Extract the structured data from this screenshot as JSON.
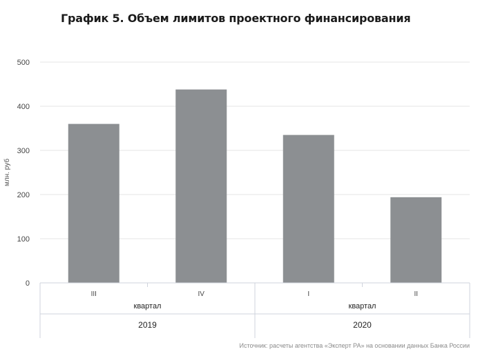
{
  "title": "График 5. Объем лимитов проектного финансирования",
  "source": "Источник: расчеты агентства «Эксперт РА» на основании данных Банка России",
  "colors": {
    "bar": "#8c8f92",
    "grid": "#e6e6e6",
    "axis": "#cfd3dc",
    "text": "#333333"
  },
  "chart_data": {
    "type": "bar",
    "title": "График 5. Объем лимитов проектного финансирования",
    "ylabel": "млн. руб",
    "ylim": [
      0,
      500
    ],
    "yticks": [
      "0",
      "100",
      "200",
      "300",
      "400",
      "500"
    ],
    "grid": true,
    "categories": [
      "III",
      "IV",
      "I",
      "II"
    ],
    "values": [
      360,
      438,
      335,
      194
    ],
    "groups": [
      {
        "sublabel": "квартал",
        "label": "2019",
        "categories": [
          "III",
          "IV"
        ]
      },
      {
        "sublabel": "квартал",
        "label": "2020",
        "categories": [
          "I",
          "II"
        ]
      }
    ]
  }
}
